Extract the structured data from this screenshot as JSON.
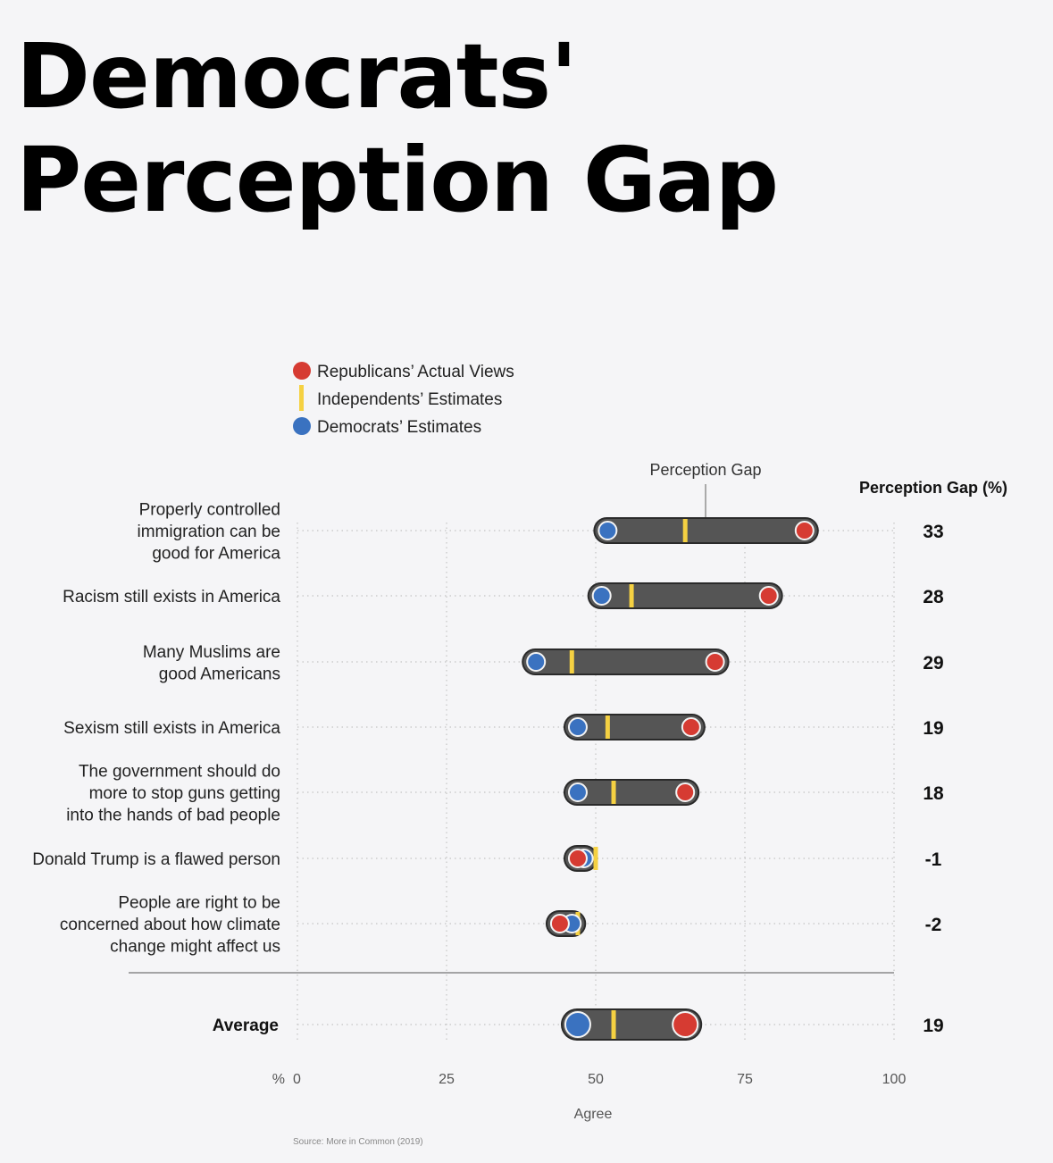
{
  "title": "Democrats' Perception Gap",
  "legend": [
    {
      "label": "Republicans’ Actual Views",
      "marker": "dot",
      "color": "#d63b32"
    },
    {
      "label": "Independents’ Estimates",
      "marker": "bar",
      "color": "#f5d142"
    },
    {
      "label": "Democrats’ Estimates",
      "marker": "dot",
      "color": "#3a72c0"
    }
  ],
  "annotation": "Perception Gap",
  "gap_header": "Perception Gap (%)",
  "axis": {
    "unit": "%",
    "xlabel": "Agree",
    "ticks": [
      "0",
      "25",
      "50",
      "75",
      "100"
    ]
  },
  "source": "Source: More in Common (2019)",
  "colors": {
    "republican": "#d63b32",
    "independent": "#f5d142",
    "democrat": "#3a72c0",
    "bar": "#555555"
  },
  "chart_data": {
    "type": "dumbbell",
    "title": "Democrats' Perception Gap",
    "xlabel": "Agree",
    "xlim": [
      0,
      100
    ],
    "grid": true,
    "legend_position": "top-left",
    "series": [
      {
        "name": "Republicans’ Actual Views",
        "key": "republican"
      },
      {
        "name": "Independents’ Estimates",
        "key": "independent"
      },
      {
        "name": "Democrats’ Estimates",
        "key": "democrat"
      }
    ],
    "rows": [
      {
        "label": [
          "Properly controlled",
          "immigration can be",
          "good for America"
        ],
        "republican": 85,
        "independent": 65,
        "democrat": 52,
        "gap": "33"
      },
      {
        "label": [
          "Racism still exists in America"
        ],
        "republican": 79,
        "independent": 56,
        "democrat": 51,
        "gap": "28"
      },
      {
        "label": [
          "Many Muslims are",
          "good Americans"
        ],
        "republican": 70,
        "independent": 46,
        "democrat": 40,
        "gap": "29"
      },
      {
        "label": [
          "Sexism still exists in America"
        ],
        "republican": 66,
        "independent": 52,
        "democrat": 47,
        "gap": "19"
      },
      {
        "label": [
          "The government should do",
          "more to stop guns getting",
          "into the hands of bad people"
        ],
        "republican": 65,
        "independent": 53,
        "democrat": 47,
        "gap": "18"
      },
      {
        "label": [
          "Donald Trump is a flawed person"
        ],
        "republican": 47,
        "independent": 50,
        "democrat": 48,
        "gap": "-1"
      },
      {
        "label": [
          "People are right to be",
          "concerned about how climate",
          "change might affect us"
        ],
        "republican": 44,
        "independent": 47,
        "democrat": 46,
        "gap": "-2"
      }
    ],
    "average": {
      "label": "Average",
      "republican": 65,
      "independent": 53,
      "democrat": 47,
      "gap": "19"
    }
  }
}
